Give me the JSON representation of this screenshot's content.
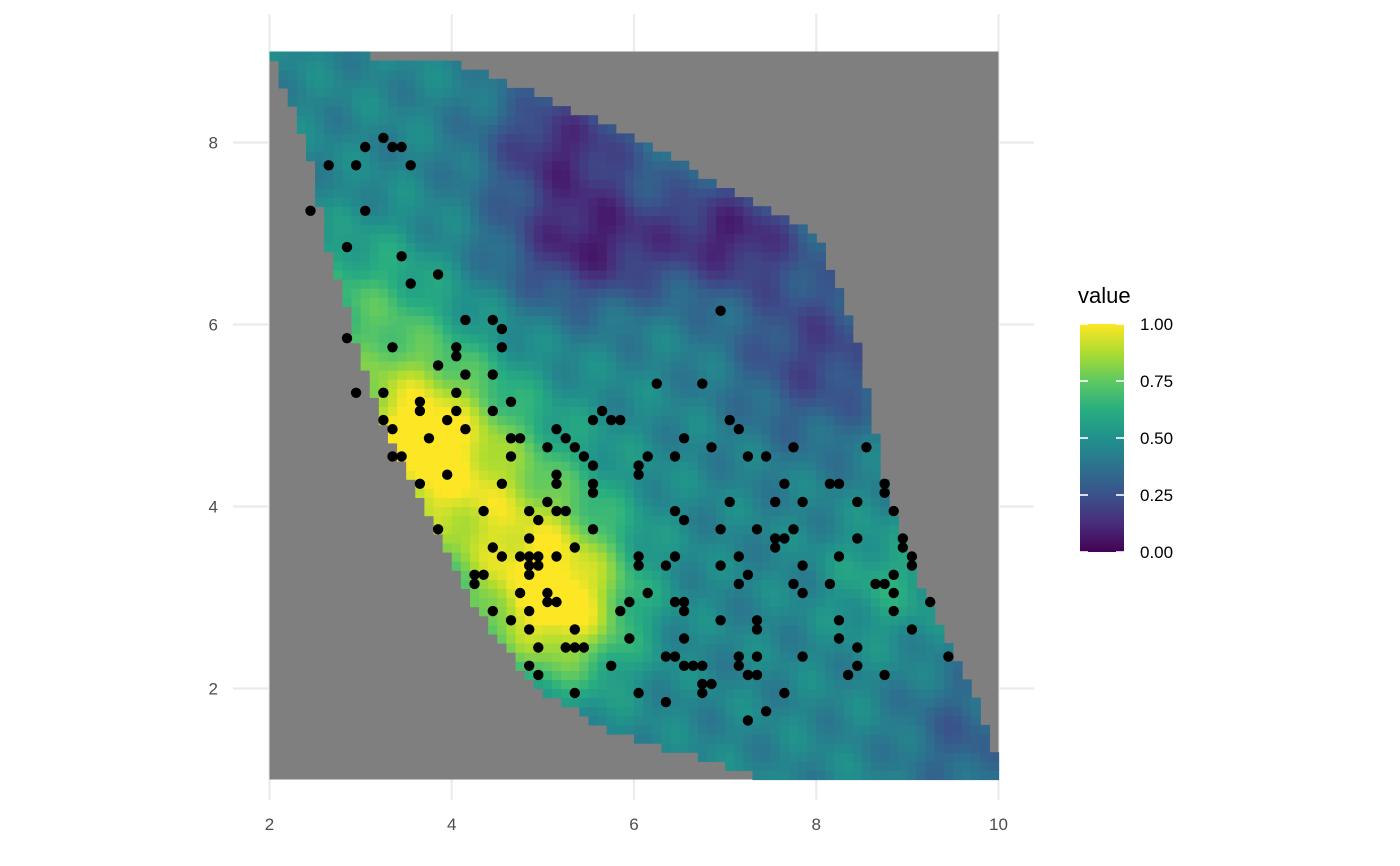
{
  "chart_data": {
    "type": "heatmap",
    "title": "",
    "xlabel": "",
    "ylabel": "",
    "xlim": [
      2,
      10
    ],
    "ylim": [
      1,
      9
    ],
    "x_ticks": [
      "2",
      "4",
      "6",
      "8",
      "10"
    ],
    "y_ticks": [
      "2",
      "4",
      "6",
      "8"
    ],
    "grid": true,
    "panel_background": "#7f7f7f",
    "colorscale": "viridis",
    "colorbar": {
      "title": "value",
      "range": [
        0,
        1
      ],
      "ticks": [
        "0.00",
        "0.25",
        "0.50",
        "0.75",
        "1.00"
      ],
      "placement": "right"
    },
    "point_color": "#000000",
    "points": [
      [
        2.45,
        7.25
      ],
      [
        2.65,
        7.75
      ],
      [
        2.95,
        7.75
      ],
      [
        3.05,
        7.95
      ],
      [
        3.25,
        8.05
      ],
      [
        3.35,
        7.95
      ],
      [
        3.45,
        7.95
      ],
      [
        3.55,
        7.75
      ],
      [
        3.05,
        7.25
      ],
      [
        2.85,
        6.85
      ],
      [
        3.45,
        6.75
      ],
      [
        3.55,
        6.45
      ],
      [
        3.85,
        6.55
      ],
      [
        2.85,
        5.85
      ],
      [
        3.35,
        5.75
      ],
      [
        2.95,
        5.25
      ],
      [
        3.25,
        5.25
      ],
      [
        3.25,
        4.95
      ],
      [
        3.35,
        4.85
      ],
      [
        3.65,
        5.15
      ],
      [
        3.65,
        5.05
      ],
      [
        3.35,
        4.55
      ],
      [
        3.45,
        4.55
      ],
      [
        3.75,
        4.75
      ],
      [
        3.85,
        5.55
      ],
      [
        4.05,
        5.75
      ],
      [
        4.05,
        5.65
      ],
      [
        4.15,
        6.05
      ],
      [
        4.15,
        5.45
      ],
      [
        4.05,
        5.25
      ],
      [
        4.05,
        5.05
      ],
      [
        3.95,
        4.95
      ],
      [
        4.15,
        4.85
      ],
      [
        4.45,
        6.05
      ],
      [
        4.55,
        5.95
      ],
      [
        4.55,
        5.75
      ],
      [
        4.45,
        5.45
      ],
      [
        4.45,
        5.05
      ],
      [
        4.65,
        5.15
      ],
      [
        4.65,
        4.75
      ],
      [
        4.75,
        4.75
      ],
      [
        4.65,
        4.55
      ],
      [
        4.55,
        4.25
      ],
      [
        3.95,
        4.35
      ],
      [
        3.65,
        4.25
      ],
      [
        3.85,
        3.75
      ],
      [
        4.35,
        3.95
      ],
      [
        4.45,
        3.55
      ],
      [
        4.55,
        3.45
      ],
      [
        4.25,
        3.25
      ],
      [
        4.35,
        3.25
      ],
      [
        4.25,
        3.15
      ],
      [
        4.45,
        2.85
      ],
      [
        4.65,
        2.75
      ],
      [
        4.75,
        3.05
      ],
      [
        4.75,
        3.45
      ],
      [
        4.85,
        3.45
      ],
      [
        4.85,
        3.35
      ],
      [
        4.85,
        3.25
      ],
      [
        4.95,
        3.45
      ],
      [
        4.95,
        3.35
      ],
      [
        4.85,
        3.65
      ],
      [
        4.85,
        3.95
      ],
      [
        4.95,
        3.85
      ],
      [
        5.05,
        4.05
      ],
      [
        5.15,
        3.95
      ],
      [
        5.25,
        3.95
      ],
      [
        5.15,
        3.45
      ],
      [
        5.35,
        3.55
      ],
      [
        4.85,
        2.85
      ],
      [
        4.85,
        2.65
      ],
      [
        4.95,
        2.45
      ],
      [
        5.05,
        3.05
      ],
      [
        5.05,
        2.95
      ],
      [
        5.15,
        2.95
      ],
      [
        4.85,
        2.25
      ],
      [
        4.95,
        2.15
      ],
      [
        5.25,
        2.45
      ],
      [
        5.35,
        2.45
      ],
      [
        5.45,
        2.45
      ],
      [
        5.35,
        2.65
      ],
      [
        5.35,
        1.95
      ],
      [
        5.05,
        4.65
      ],
      [
        5.15,
        4.85
      ],
      [
        5.25,
        4.75
      ],
      [
        5.35,
        4.65
      ],
      [
        5.15,
        4.35
      ],
      [
        5.15,
        4.25
      ],
      [
        5.45,
        4.55
      ],
      [
        5.55,
        4.45
      ],
      [
        5.55,
        4.25
      ],
      [
        5.55,
        4.15
      ],
      [
        5.55,
        4.95
      ],
      [
        5.65,
        5.05
      ],
      [
        5.75,
        4.95
      ],
      [
        5.85,
        4.95
      ],
      [
        5.55,
        3.75
      ],
      [
        6.05,
        4.45
      ],
      [
        6.05,
        4.35
      ],
      [
        6.15,
        4.55
      ],
      [
        6.25,
        5.35
      ],
      [
        6.75,
        5.35
      ],
      [
        6.05,
        3.45
      ],
      [
        6.05,
        3.35
      ],
      [
        6.35,
        3.35
      ],
      [
        6.45,
        3.45
      ],
      [
        6.45,
        3.95
      ],
      [
        6.55,
        3.85
      ],
      [
        5.85,
        2.85
      ],
      [
        5.95,
        2.95
      ],
      [
        6.15,
        3.05
      ],
      [
        5.95,
        2.55
      ],
      [
        6.35,
        2.35
      ],
      [
        6.45,
        2.35
      ],
      [
        6.45,
        2.95
      ],
      [
        6.55,
        2.95
      ],
      [
        6.55,
        2.85
      ],
      [
        6.55,
        2.55
      ],
      [
        6.55,
        2.25
      ],
      [
        6.65,
        2.25
      ],
      [
        6.75,
        2.25
      ],
      [
        6.75,
        2.05
      ],
      [
        6.85,
        2.05
      ],
      [
        6.75,
        1.95
      ],
      [
        6.35,
        1.85
      ],
      [
        6.05,
        1.95
      ],
      [
        5.75,
        2.25
      ],
      [
        6.45,
        4.55
      ],
      [
        6.55,
        4.75
      ],
      [
        6.85,
        4.65
      ],
      [
        6.95,
        6.15
      ],
      [
        7.05,
        4.95
      ],
      [
        7.15,
        4.85
      ],
      [
        7.25,
        4.55
      ],
      [
        7.45,
        4.55
      ],
      [
        7.05,
        4.05
      ],
      [
        6.95,
        3.75
      ],
      [
        6.95,
        3.35
      ],
      [
        7.15,
        3.45
      ],
      [
        7.15,
        3.15
      ],
      [
        7.25,
        3.25
      ],
      [
        6.95,
        2.75
      ],
      [
        7.15,
        2.35
      ],
      [
        7.15,
        2.25
      ],
      [
        7.25,
        2.15
      ],
      [
        7.35,
        2.15
      ],
      [
        7.35,
        2.35
      ],
      [
        7.35,
        2.75
      ],
      [
        7.35,
        2.65
      ],
      [
        7.35,
        3.75
      ],
      [
        7.55,
        4.05
      ],
      [
        7.55,
        3.65
      ],
      [
        7.55,
        3.55
      ],
      [
        7.65,
        3.65
      ],
      [
        7.65,
        4.25
      ],
      [
        7.75,
        4.65
      ],
      [
        7.75,
        3.75
      ],
      [
        7.85,
        4.05
      ],
      [
        7.75,
        3.15
      ],
      [
        7.85,
        3.05
      ],
      [
        7.85,
        3.35
      ],
      [
        7.85,
        2.35
      ],
      [
        7.65,
        1.95
      ],
      [
        7.45,
        1.75
      ],
      [
        7.25,
        1.65
      ],
      [
        8.15,
        4.25
      ],
      [
        8.25,
        4.25
      ],
      [
        8.45,
        4.05
      ],
      [
        8.55,
        4.65
      ],
      [
        8.75,
        4.25
      ],
      [
        8.75,
        4.15
      ],
      [
        8.45,
        3.65
      ],
      [
        8.25,
        3.45
      ],
      [
        8.15,
        3.15
      ],
      [
        8.65,
        3.15
      ],
      [
        8.75,
        3.15
      ],
      [
        8.85,
        3.25
      ],
      [
        8.85,
        3.05
      ],
      [
        8.85,
        3.95
      ],
      [
        8.95,
        3.65
      ],
      [
        8.95,
        3.55
      ],
      [
        9.05,
        3.45
      ],
      [
        9.05,
        3.35
      ],
      [
        8.85,
        2.85
      ],
      [
        8.25,
        2.75
      ],
      [
        8.25,
        2.55
      ],
      [
        8.45,
        2.45
      ],
      [
        8.45,
        2.25
      ],
      [
        8.35,
        2.15
      ],
      [
        8.75,
        2.15
      ],
      [
        9.05,
        2.65
      ],
      [
        9.25,
        2.95
      ],
      [
        9.45,
        2.35
      ]
    ]
  }
}
